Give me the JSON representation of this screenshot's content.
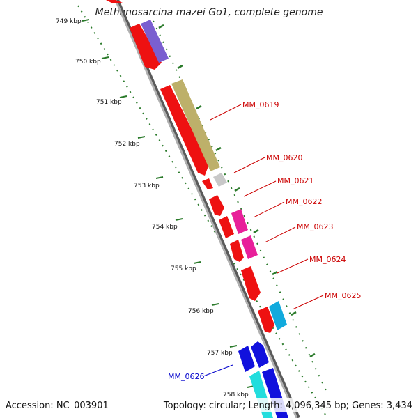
{
  "title": "Methanosarcina mazei Go1, complete genome",
  "footer": {
    "accession": "Accession: NC_003901",
    "summary": "Topology: circular; Length: 4,096,345 bp; Genes: 3,434"
  },
  "ticks": [
    "749 kbp",
    "750 kbp",
    "751 kbp",
    "752 kbp",
    "753 kbp",
    "754 kbp",
    "755 kbp",
    "756 kbp",
    "757 kbp",
    "758 kbp"
  ],
  "gene_labels": [
    "MM_0619",
    "MM_0620",
    "MM_0621",
    "MM_0622",
    "MM_0623",
    "MM_0624",
    "MM_0625",
    "MM_0626"
  ],
  "colors": {
    "label_red": "#cc0000",
    "label_blue": "#0000cc",
    "backbone": "#8a8a8a",
    "tick_green": "#2a7a2a",
    "gene_red": "#ee1111",
    "gene_purple": "#7a5fd0",
    "gene_olive": "#bdb06a",
    "gene_gray": "#c8c8c8",
    "gene_magenta": "#e8209a",
    "gene_cyan": "#11aadd",
    "gene_blue": "#1111dd",
    "gene_lightcyan": "#22dddd"
  }
}
